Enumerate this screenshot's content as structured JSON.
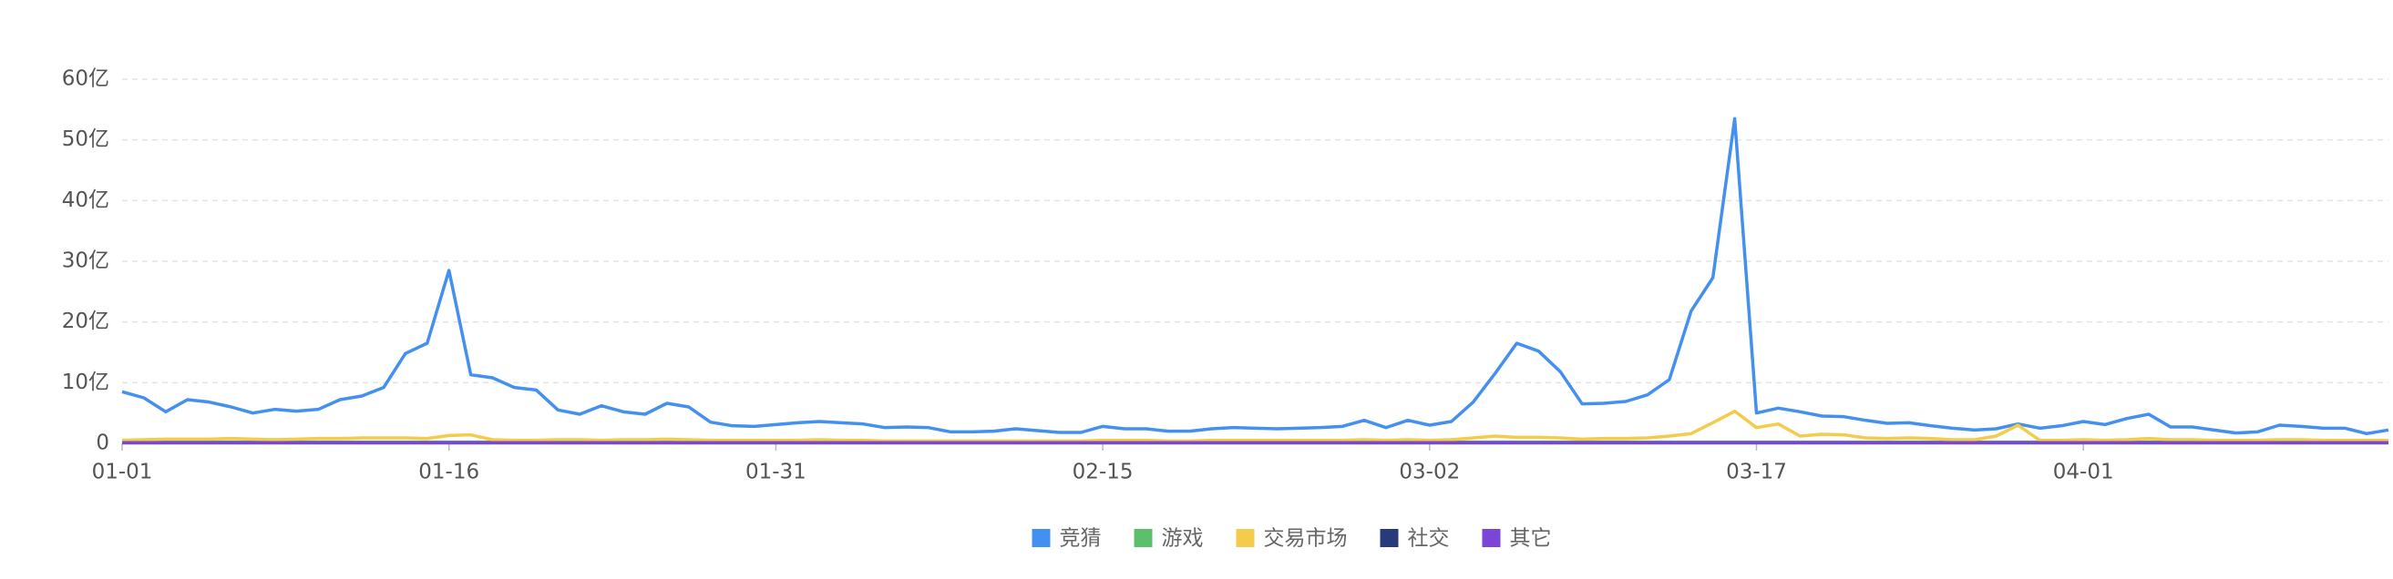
{
  "chart_data": {
    "type": "line",
    "categories": [
      "01-01",
      null,
      null,
      null,
      null,
      null,
      null,
      null,
      null,
      null,
      null,
      null,
      null,
      null,
      null,
      "01-16",
      null,
      null,
      null,
      null,
      null,
      null,
      null,
      null,
      null,
      null,
      null,
      null,
      null,
      null,
      "01-31",
      null,
      null,
      null,
      null,
      null,
      null,
      null,
      null,
      null,
      null,
      null,
      null,
      null,
      null,
      "02-15",
      null,
      null,
      null,
      null,
      null,
      null,
      null,
      null,
      null,
      null,
      null,
      null,
      null,
      null,
      "03-02",
      null,
      null,
      null,
      null,
      null,
      null,
      null,
      null,
      null,
      null,
      null,
      null,
      null,
      null,
      "03-17",
      null,
      null,
      null,
      null,
      null,
      null,
      null,
      null,
      null,
      null,
      null,
      null,
      null,
      null,
      "04-01",
      null,
      null,
      null,
      null,
      null,
      null,
      null,
      null,
      null,
      null,
      null,
      null,
      null,
      null
    ],
    "series": [
      {
        "name": "竞猜",
        "color": "#4390f0",
        "values": [
          8.5,
          7.5,
          5.2,
          7.2,
          6.8,
          6.0,
          5.0,
          5.6,
          5.3,
          5.6,
          7.2,
          7.8,
          9.2,
          14.8,
          16.5,
          28.5,
          11.3,
          10.8,
          9.2,
          8.8,
          5.5,
          4.8,
          6.2,
          5.2,
          4.8,
          6.6,
          6.0,
          3.5,
          2.9,
          2.8,
          3.1,
          3.4,
          3.6,
          3.4,
          3.2,
          2.6,
          2.7,
          2.6,
          1.9,
          1.9,
          2.0,
          2.4,
          2.1,
          1.8,
          1.8,
          2.8,
          2.4,
          2.4,
          2.0,
          2.0,
          2.4,
          2.6,
          2.5,
          2.4,
          2.5,
          2.6,
          2.8,
          3.8,
          2.6,
          3.8,
          3.0,
          3.6,
          6.8,
          11.5,
          16.5,
          15.2,
          11.8,
          6.5,
          6.6,
          6.9,
          8.0,
          10.5,
          21.8,
          27.3,
          53.5,
          5.0,
          5.8,
          5.2,
          4.5,
          4.4,
          3.8,
          3.3,
          3.4,
          2.9,
          2.5,
          2.2,
          2.4,
          3.2,
          2.5,
          2.9,
          3.6,
          3.1,
          4.1,
          4.8,
          2.7,
          2.7,
          2.2,
          1.7,
          1.9,
          3.0,
          2.8,
          2.5,
          2.5,
          1.6,
          2.2
        ]
      },
      {
        "name": "游戏",
        "color": "#5cbf6b",
        "values": [
          0.2,
          0.2,
          0.2,
          0.2,
          0.2,
          0.2,
          0.2,
          0.2,
          0.2,
          0.2,
          0.2,
          0.2,
          0.2,
          0.2,
          0.2,
          0.2,
          0.2,
          0.2,
          0.2,
          0.2,
          0.2,
          0.2,
          0.2,
          0.2,
          0.2,
          0.2,
          0.2,
          0.2,
          0.2,
          0.2,
          0.2,
          0.2,
          0.2,
          0.2,
          0.2,
          0.2,
          0.2,
          0.2,
          0.2,
          0.2,
          0.2,
          0.2,
          0.2,
          0.2,
          0.2,
          0.2,
          0.2,
          0.2,
          0.2,
          0.2,
          0.2,
          0.2,
          0.2,
          0.2,
          0.2,
          0.2,
          0.2,
          0.2,
          0.2,
          0.2,
          0.2,
          0.2,
          0.2,
          0.2,
          0.2,
          0.2,
          0.2,
          0.2,
          0.2,
          0.2,
          0.2,
          0.2,
          0.2,
          0.2,
          0.2,
          0.2,
          0.2,
          0.2,
          0.2,
          0.2,
          0.2,
          0.2,
          0.2,
          0.2,
          0.2,
          0.2,
          0.2,
          0.2,
          0.2,
          0.2,
          0.2,
          0.2,
          0.2,
          0.2,
          0.2,
          0.2,
          0.2,
          0.2,
          0.2,
          0.2,
          0.2,
          0.2,
          0.2,
          0.2,
          0.2
        ]
      },
      {
        "name": "交易市场",
        "color": "#f2cc4a",
        "values": [
          0.5,
          0.6,
          0.7,
          0.7,
          0.7,
          0.8,
          0.7,
          0.6,
          0.7,
          0.8,
          0.8,
          0.9,
          0.9,
          0.9,
          0.8,
          1.3,
          1.4,
          0.6,
          0.5,
          0.5,
          0.6,
          0.6,
          0.5,
          0.6,
          0.6,
          0.7,
          0.6,
          0.5,
          0.5,
          0.5,
          0.5,
          0.5,
          0.6,
          0.5,
          0.5,
          0.4,
          0.4,
          0.4,
          0.4,
          0.4,
          0.4,
          0.4,
          0.4,
          0.4,
          0.4,
          0.5,
          0.5,
          0.5,
          0.4,
          0.4,
          0.5,
          0.5,
          0.5,
          0.5,
          0.5,
          0.5,
          0.5,
          0.6,
          0.5,
          0.6,
          0.5,
          0.6,
          0.9,
          1.2,
          1.0,
          1.0,
          0.9,
          0.7,
          0.8,
          0.8,
          0.9,
          1.2,
          1.6,
          3.4,
          5.3,
          2.6,
          3.2,
          1.2,
          1.5,
          1.4,
          0.9,
          0.8,
          0.9,
          0.8,
          0.6,
          0.6,
          1.2,
          3.0,
          0.5,
          0.5,
          0.6,
          0.5,
          0.6,
          0.8,
          0.6,
          0.6,
          0.5,
          0.5,
          0.5,
          0.6,
          0.6,
          0.5,
          0.5,
          0.5,
          0.5
        ]
      },
      {
        "name": "社交",
        "color": "#283a7c",
        "values": [
          0.1,
          0.1,
          0.1,
          0.1,
          0.1,
          0.1,
          0.1,
          0.1,
          0.1,
          0.1,
          0.1,
          0.1,
          0.1,
          0.1,
          0.1,
          0.1,
          0.1,
          0.1,
          0.1,
          0.1,
          0.1,
          0.1,
          0.1,
          0.1,
          0.1,
          0.1,
          0.1,
          0.1,
          0.1,
          0.1,
          0.1,
          0.1,
          0.1,
          0.1,
          0.1,
          0.1,
          0.1,
          0.1,
          0.1,
          0.1,
          0.1,
          0.1,
          0.1,
          0.1,
          0.1,
          0.1,
          0.1,
          0.1,
          0.1,
          0.1,
          0.1,
          0.1,
          0.1,
          0.1,
          0.1,
          0.1,
          0.1,
          0.1,
          0.1,
          0.1,
          0.1,
          0.1,
          0.1,
          0.1,
          0.1,
          0.1,
          0.1,
          0.1,
          0.1,
          0.1,
          0.1,
          0.1,
          0.1,
          0.1,
          0.1,
          0.1,
          0.1,
          0.1,
          0.1,
          0.1,
          0.1,
          0.1,
          0.1,
          0.1,
          0.1,
          0.1,
          0.1,
          0.1,
          0.1,
          0.1,
          0.1,
          0.1,
          0.1,
          0.1,
          0.1,
          0.1,
          0.1,
          0.1,
          0.1,
          0.1,
          0.1,
          0.1,
          0.1,
          0.1,
          0.1
        ]
      },
      {
        "name": "其它",
        "color": "#7b46d6",
        "values": [
          0.1,
          0.1,
          0.1,
          0.1,
          0.1,
          0.1,
          0.1,
          0.1,
          0.1,
          0.1,
          0.1,
          0.1,
          0.1,
          0.1,
          0.1,
          0.1,
          0.1,
          0.1,
          0.1,
          0.1,
          0.1,
          0.1,
          0.1,
          0.1,
          0.1,
          0.1,
          0.1,
          0.1,
          0.1,
          0.1,
          0.1,
          0.1,
          0.1,
          0.1,
          0.1,
          0.1,
          0.1,
          0.1,
          0.1,
          0.1,
          0.1,
          0.1,
          0.1,
          0.1,
          0.1,
          0.1,
          0.1,
          0.1,
          0.1,
          0.1,
          0.1,
          0.1,
          0.1,
          0.1,
          0.1,
          0.1,
          0.1,
          0.1,
          0.1,
          0.1,
          0.1,
          0.1,
          0.1,
          0.1,
          0.1,
          0.1,
          0.1,
          0.1,
          0.1,
          0.1,
          0.1,
          0.1,
          0.1,
          0.1,
          0.1,
          0.1,
          0.1,
          0.1,
          0.1,
          0.1,
          0.1,
          0.1,
          0.1,
          0.1,
          0.1,
          0.1,
          0.1,
          0.1,
          0.1,
          0.1,
          0.1,
          0.1,
          0.1,
          0.1,
          0.1,
          0.1,
          0.1,
          0.1,
          0.1,
          0.1,
          0.1,
          0.1,
          0.1,
          0.1,
          0.1
        ]
      }
    ],
    "ylim": [
      0,
      60
    ],
    "yticks": [
      0,
      {
        "value": 10,
        "label": "10亿"
      },
      {
        "value": 20,
        "label": "20亿"
      },
      {
        "value": 30,
        "label": "30亿"
      },
      {
        "value": 40,
        "label": "40亿"
      },
      {
        "value": 50,
        "label": "50亿"
      },
      {
        "value": 60,
        "label": "60亿"
      }
    ],
    "grid": true,
    "legend": "bottom"
  }
}
